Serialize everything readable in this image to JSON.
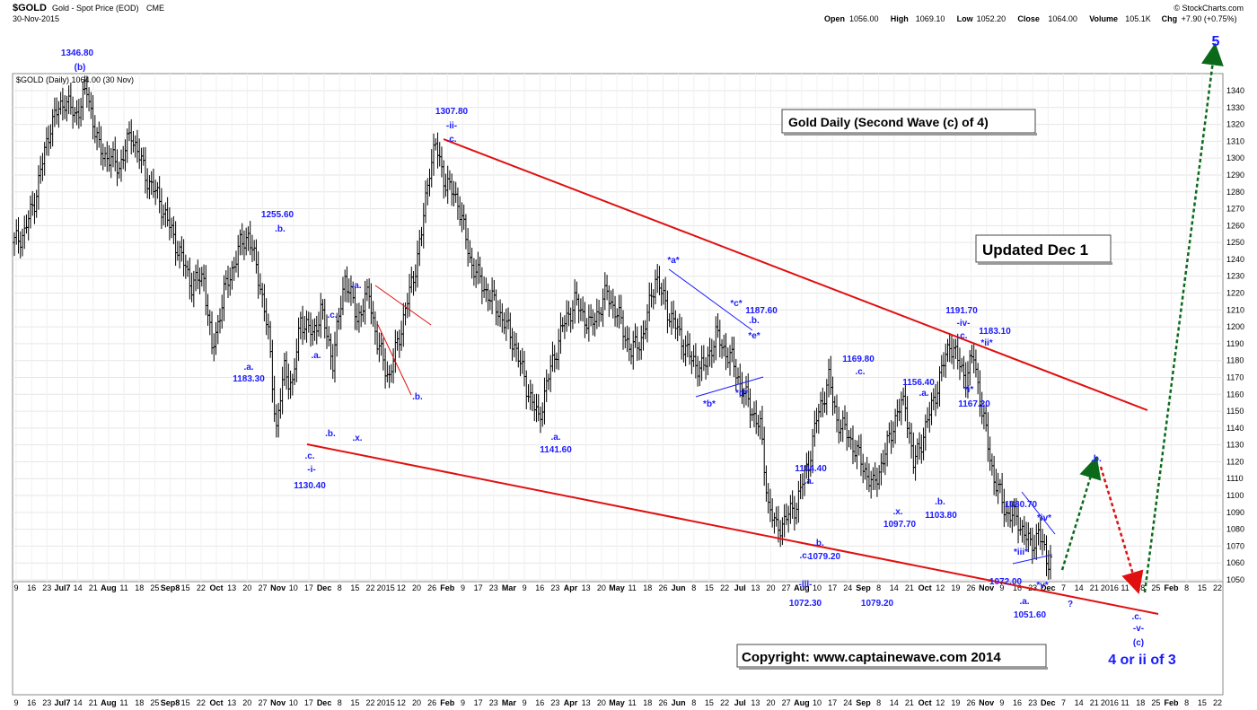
{
  "header": {
    "symbol": "$GOLD",
    "name": "Gold - Spot Price (EOD)",
    "exchange": "CME",
    "date": "30-Nov-2015",
    "brand": "© StockCharts.com",
    "ohlc": [
      {
        "label": "Open",
        "value": "1056.00"
      },
      {
        "label": "High",
        "value": "1069.10"
      },
      {
        "label": "Low",
        "value": "1052.20"
      },
      {
        "label": "Close",
        "value": "1064.00"
      },
      {
        "label": "Volume",
        "value": "105.1K"
      },
      {
        "label": "Chg",
        "value": "+7.90 (+0.75%)"
      }
    ],
    "legend": "$GOLD (Daily) 1064.00 (30 Nov)"
  },
  "boxes": {
    "title": "Gold Daily (Second Wave (c) of 4)",
    "updated": "Updated Dec 1",
    "copyright": "Copyright:   www.captainewave.com 2014"
  },
  "colors": {
    "bars": "#000000",
    "channel": "#e01010",
    "wave_labels": "#1a1aff",
    "forecast_up": "#0a6a1a",
    "forecast_down": "#e01010",
    "minor_lines": "#1a1aff"
  },
  "chart_data": {
    "type": "ohlc",
    "title": "$GOLD (Daily)",
    "ylim": [
      1045,
      1350
    ],
    "y_ticks": [
      1050,
      1060,
      1070,
      1080,
      1090,
      1100,
      1110,
      1120,
      1130,
      1140,
      1150,
      1160,
      1170,
      1180,
      1190,
      1200,
      1210,
      1220,
      1230,
      1240,
      1250,
      1260,
      1270,
      1280,
      1290,
      1300,
      1310,
      1320,
      1330,
      1340
    ],
    "x_tick_labels": [
      "9",
      "16",
      "23",
      "Jul7",
      "14",
      "21",
      "Aug",
      "11",
      "18",
      "25",
      "Sep8",
      "15",
      "22",
      "Oct",
      "13",
      "20",
      "27",
      "Nov",
      "10",
      "17",
      "Dec",
      "8",
      "15",
      "22",
      "2015",
      "12",
      "20",
      "26",
      "Feb",
      "9",
      "17",
      "23",
      "Mar",
      "9",
      "16",
      "23",
      "Apr",
      "13",
      "20",
      "May",
      "11",
      "18",
      "26",
      "Jun",
      "8",
      "15",
      "22",
      "Jul",
      "13",
      "20",
      "27",
      "Aug",
      "10",
      "17",
      "24",
      "Sep",
      "8",
      "14",
      "21",
      "Oct",
      "12",
      "19",
      "26",
      "Nov",
      "9",
      "16",
      "23",
      "Dec",
      "7",
      "14",
      "21",
      "2016",
      "11",
      "18",
      "25",
      "Feb",
      "8",
      "15",
      "22"
    ],
    "price_path": [
      [
        0,
        1250
      ],
      [
        5,
        1256
      ],
      [
        10,
        1275
      ],
      [
        18,
        1320
      ],
      [
        25,
        1335
      ],
      [
        30,
        1325
      ],
      [
        36,
        1340
      ],
      [
        42,
        1305
      ],
      [
        52,
        1295
      ],
      [
        58,
        1315
      ],
      [
        65,
        1290
      ],
      [
        72,
        1275
      ],
      [
        80,
        1250
      ],
      [
        88,
        1225
      ],
      [
        94,
        1230
      ],
      [
        98,
        1185
      ],
      [
        104,
        1220
      ],
      [
        112,
        1248
      ],
      [
        116,
        1255
      ],
      [
        122,
        1225
      ],
      [
        126,
        1195
      ],
      [
        130,
        1140
      ],
      [
        134,
        1175
      ],
      [
        138,
        1165
      ],
      [
        142,
        1205
      ],
      [
        148,
        1195
      ],
      [
        152,
        1210
      ],
      [
        158,
        1180
      ],
      [
        164,
        1230
      ],
      [
        170,
        1205
      ],
      [
        176,
        1220
      ],
      [
        180,
        1190
      ],
      [
        186,
        1170
      ],
      [
        192,
        1200
      ],
      [
        198,
        1230
      ],
      [
        202,
        1255
      ],
      [
        206,
        1295
      ],
      [
        209,
        1307
      ],
      [
        214,
        1285
      ],
      [
        220,
        1275
      ],
      [
        226,
        1240
      ],
      [
        232,
        1225
      ],
      [
        240,
        1210
      ],
      [
        248,
        1190
      ],
      [
        254,
        1165
      ],
      [
        260,
        1145
      ],
      [
        266,
        1175
      ],
      [
        272,
        1200
      ],
      [
        278,
        1215
      ],
      [
        286,
        1200
      ],
      [
        294,
        1220
      ],
      [
        300,
        1205
      ],
      [
        306,
        1185
      ],
      [
        312,
        1195
      ],
      [
        318,
        1230
      ],
      [
        324,
        1210
      ],
      [
        330,
        1195
      ],
      [
        336,
        1180
      ],
      [
        342,
        1175
      ],
      [
        348,
        1195
      ],
      [
        352,
        1187
      ],
      [
        356,
        1180
      ],
      [
        362,
        1160
      ],
      [
        370,
        1140
      ],
      [
        374,
        1095
      ],
      [
        378,
        1080
      ],
      [
        382,
        1085
      ],
      [
        388,
        1095
      ],
      [
        394,
        1120
      ],
      [
        398,
        1145
      ],
      [
        404,
        1169
      ],
      [
        408,
        1145
      ],
      [
        414,
        1135
      ],
      [
        420,
        1120
      ],
      [
        426,
        1105
      ],
      [
        432,
        1125
      ],
      [
        438,
        1150
      ],
      [
        442,
        1155
      ],
      [
        446,
        1118
      ],
      [
        452,
        1140
      ],
      [
        458,
        1165
      ],
      [
        464,
        1191
      ],
      [
        468,
        1180
      ],
      [
        472,
        1170
      ],
      [
        476,
        1183
      ],
      [
        480,
        1150
      ],
      [
        486,
        1110
      ],
      [
        492,
        1090
      ],
      [
        498,
        1085
      ],
      [
        504,
        1070
      ],
      [
        508,
        1078
      ],
      [
        512,
        1062
      ],
      [
        514,
        1064
      ]
    ],
    "annotations": [
      {
        "text": "1346.80",
        "value": 1346.8
      },
      {
        "text": "(b)"
      },
      {
        "text": "1255.60",
        "value": 1255.6
      },
      {
        "text": ".b."
      },
      {
        "text": ".a."
      },
      {
        "text": "1183.30",
        "value": 1183.3
      },
      {
        "text": ".a."
      },
      {
        "text": ".c."
      },
      {
        "text": ".b."
      },
      {
        "text": ".x."
      },
      {
        "text": ".a."
      },
      {
        "text": ".c."
      },
      {
        "text": "-i-"
      },
      {
        "text": "1130.40",
        "value": 1130.4
      },
      {
        "text": ".b."
      },
      {
        "text": "1307.80",
        "value": 1307.8
      },
      {
        "text": "-ii-"
      },
      {
        "text": ".c."
      },
      {
        "text": ".a."
      },
      {
        "text": "1141.60",
        "value": 1141.6
      },
      {
        "text": "*a*"
      },
      {
        "text": "*c*"
      },
      {
        "text": "1187.60",
        "value": 1187.6
      },
      {
        "text": ".b."
      },
      {
        "text": "*e*"
      },
      {
        "text": "*b*"
      },
      {
        "text": "*d*"
      },
      {
        "text": "1104.40",
        "value": 1104.4
      },
      {
        "text": ".a."
      },
      {
        "text": ".b."
      },
      {
        "text": ".c."
      },
      {
        "text": "1079.20",
        "value": 1079.2
      },
      {
        "text": "-iii-"
      },
      {
        "text": "1072.30",
        "value": 1072.3
      },
      {
        "text": "1079.20",
        "value": 1079.2
      },
      {
        "text": "1169.80",
        "value": 1169.8
      },
      {
        "text": ".c."
      },
      {
        "text": "1156.40",
        "value": 1156.4
      },
      {
        "text": ".a."
      },
      {
        "text": ".x."
      },
      {
        "text": "1097.70",
        "value": 1097.7
      },
      {
        "text": ".b."
      },
      {
        "text": "1103.80",
        "value": 1103.8
      },
      {
        "text": "1191.70",
        "value": 1191.7
      },
      {
        "text": "-iv-"
      },
      {
        "text": ".c."
      },
      {
        "text": "1183.10",
        "value": 1183.1
      },
      {
        "text": "*ii*"
      },
      {
        "text": "*i*"
      },
      {
        "text": "1167.20",
        "value": 1167.2
      },
      {
        "text": "1080.70",
        "value": 1080.7
      },
      {
        "text": "*iv*"
      },
      {
        "text": "*iii*"
      },
      {
        "text": "1072.00",
        "value": 1072.0
      },
      {
        "text": "*v*"
      },
      {
        "text": ".a."
      },
      {
        "text": "1051.60",
        "value": 1051.6
      },
      {
        "text": "?"
      },
      {
        "text": ".b."
      },
      {
        "text": ".c."
      },
      {
        "text": "-v-"
      },
      {
        "text": "(c)"
      },
      {
        "text": "4 or ii of 3"
      },
      {
        "text": "5"
      }
    ],
    "grid": true,
    "legend": "top-left"
  }
}
